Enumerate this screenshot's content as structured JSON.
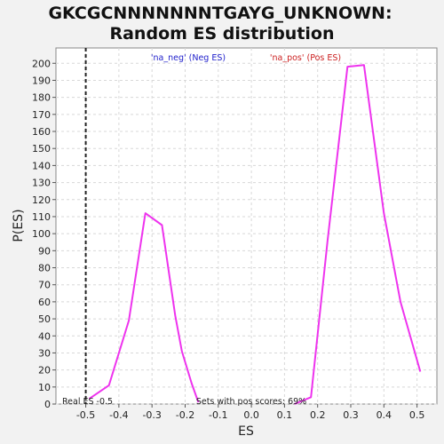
{
  "chart_data": {
    "type": "line",
    "title_line1": "GKCGCNNNNNNNTGAYG_UNKNOWN:",
    "title_line2": "Random ES distribution",
    "xlabel": "ES",
    "ylabel": "P(ES)",
    "xlim": [
      -0.59,
      0.56
    ],
    "ylim": [
      0,
      209
    ],
    "xticks": [
      "-0.5",
      "-0.4",
      "-0.3",
      "-0.2",
      "-0.1",
      "0.0",
      "0.1",
      "0.2",
      "0.3",
      "0.4",
      "0.5"
    ],
    "xtick_values": [
      -0.5,
      -0.4,
      -0.3,
      -0.2,
      -0.1,
      0.0,
      0.1,
      0.2,
      0.3,
      0.4,
      0.5
    ],
    "yticks": [
      0,
      10,
      20,
      30,
      40,
      50,
      60,
      70,
      80,
      90,
      100,
      110,
      120,
      130,
      140,
      150,
      160,
      170,
      180,
      190,
      200
    ],
    "grid": true,
    "series": [
      {
        "name": "'na_neg' (Neg ES)",
        "color": "#ee33ee",
        "x": [
          -0.49,
          -0.43,
          -0.37,
          -0.32,
          -0.27,
          -0.23,
          -0.21,
          -0.18,
          -0.16
        ],
        "y": [
          3,
          11,
          49,
          112,
          105,
          52,
          31,
          12,
          1
        ]
      },
      {
        "name": "'na_pos' (Pos ES)",
        "color": "#ee33ee",
        "x": [
          0.13,
          0.18,
          0.23,
          0.29,
          0.34,
          0.4,
          0.45,
          0.51
        ],
        "y": [
          0,
          4,
          96,
          198,
          199,
          112,
          60,
          19
        ]
      }
    ],
    "legend": [
      {
        "label": "'na_neg' (Neg ES)",
        "color": "#2222cc"
      },
      {
        "label": "'na_pos' (Pos ES)",
        "color": "#cc2222"
      }
    ],
    "real_es": {
      "value": -0.5,
      "label": "Real ES -0.5"
    },
    "annotation": "Sets with pos scores: 69%"
  }
}
